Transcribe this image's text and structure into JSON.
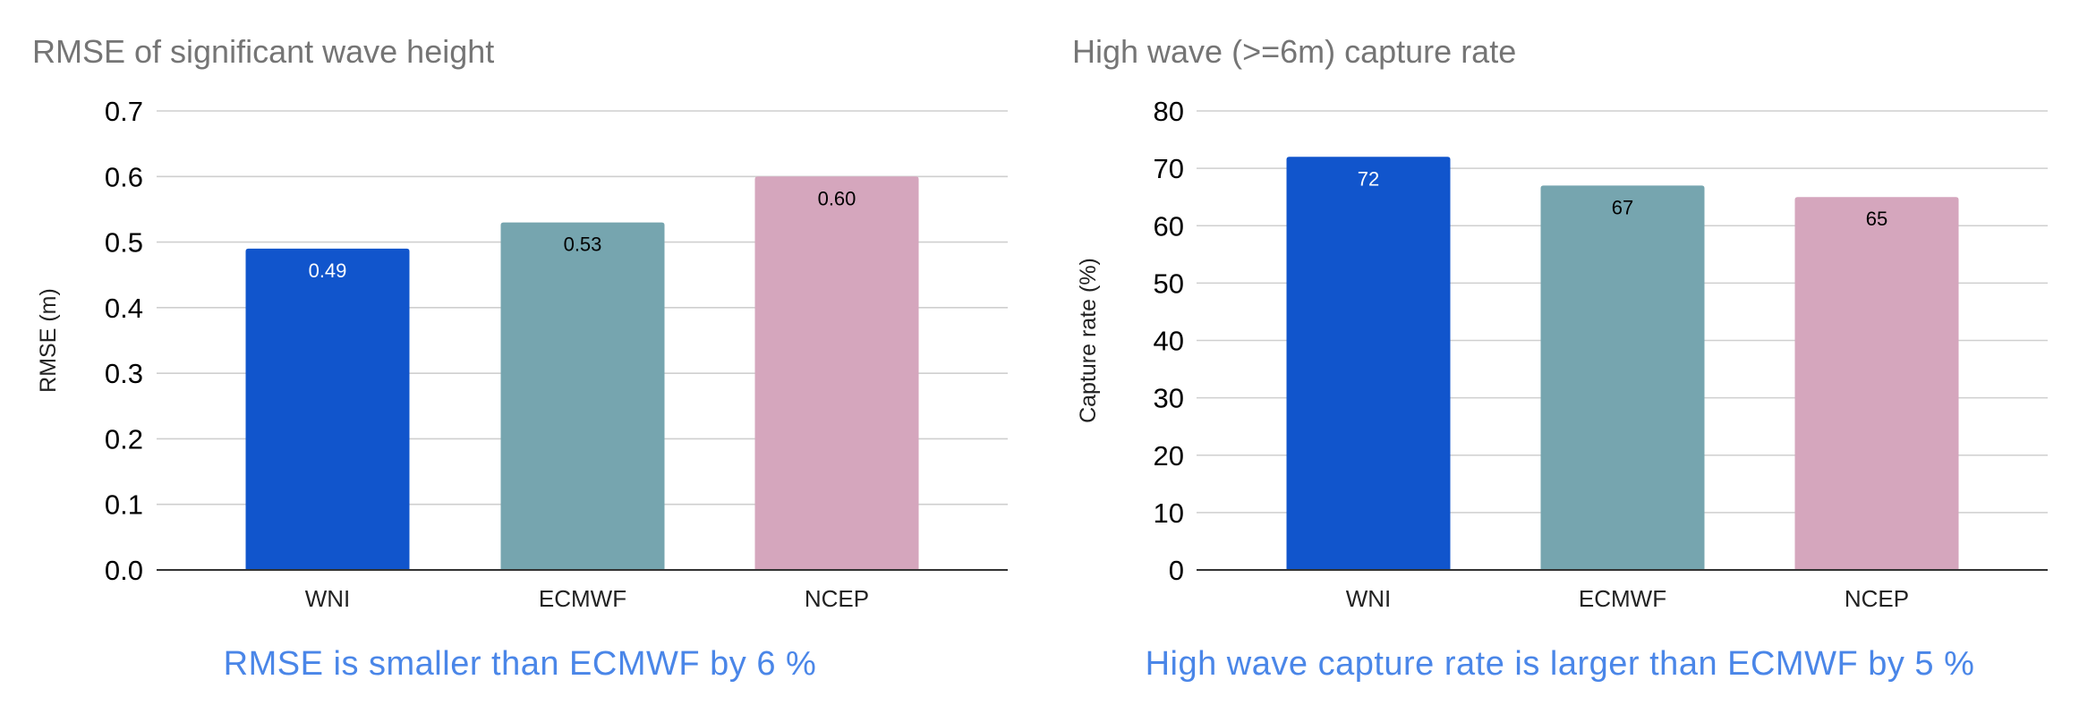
{
  "chart_data": [
    {
      "type": "bar",
      "title": "RMSE of significant wave height",
      "xlabel": "",
      "ylabel": "RMSE (m)",
      "categories": [
        "WNI",
        "ECMWF",
        "NCEP"
      ],
      "values": [
        0.49,
        0.53,
        0.6
      ],
      "data_labels": [
        "0.49",
        "0.53",
        "0.60"
      ],
      "colors": [
        "#1155cc",
        "#76a5af",
        "#d5a6bd"
      ],
      "label_colors": [
        "#ffffff",
        "#000000",
        "#000000"
      ],
      "ylim": [
        0,
        0.7
      ],
      "yticks": [
        0,
        0.1,
        0.2,
        0.3,
        0.4,
        0.5,
        0.6,
        0.7
      ],
      "ytick_labels": [
        "0.0",
        "0.1",
        "0.2",
        "0.3",
        "0.4",
        "0.5",
        "0.6",
        "0.7"
      ],
      "grid": true,
      "legend": "none",
      "caption": "RMSE is smaller than ECMWF by 6 %"
    },
    {
      "type": "bar",
      "title": "High wave (>=6m) capture rate",
      "xlabel": "",
      "ylabel": "Capture rate (%)",
      "categories": [
        "WNI",
        "ECMWF",
        "NCEP"
      ],
      "values": [
        72,
        67,
        65
      ],
      "data_labels": [
        "72",
        "67",
        "65"
      ],
      "colors": [
        "#1155cc",
        "#76a5af",
        "#d5a6bd"
      ],
      "label_colors": [
        "#ffffff",
        "#000000",
        "#000000"
      ],
      "ylim": [
        0,
        80
      ],
      "yticks": [
        0,
        10,
        20,
        30,
        40,
        50,
        60,
        70,
        80
      ],
      "ytick_labels": [
        "0",
        "10",
        "20",
        "30",
        "40",
        "50",
        "60",
        "70",
        "80"
      ],
      "grid": true,
      "legend": "none",
      "caption": "High wave capture rate is larger than ECMWF by 5 %"
    }
  ]
}
